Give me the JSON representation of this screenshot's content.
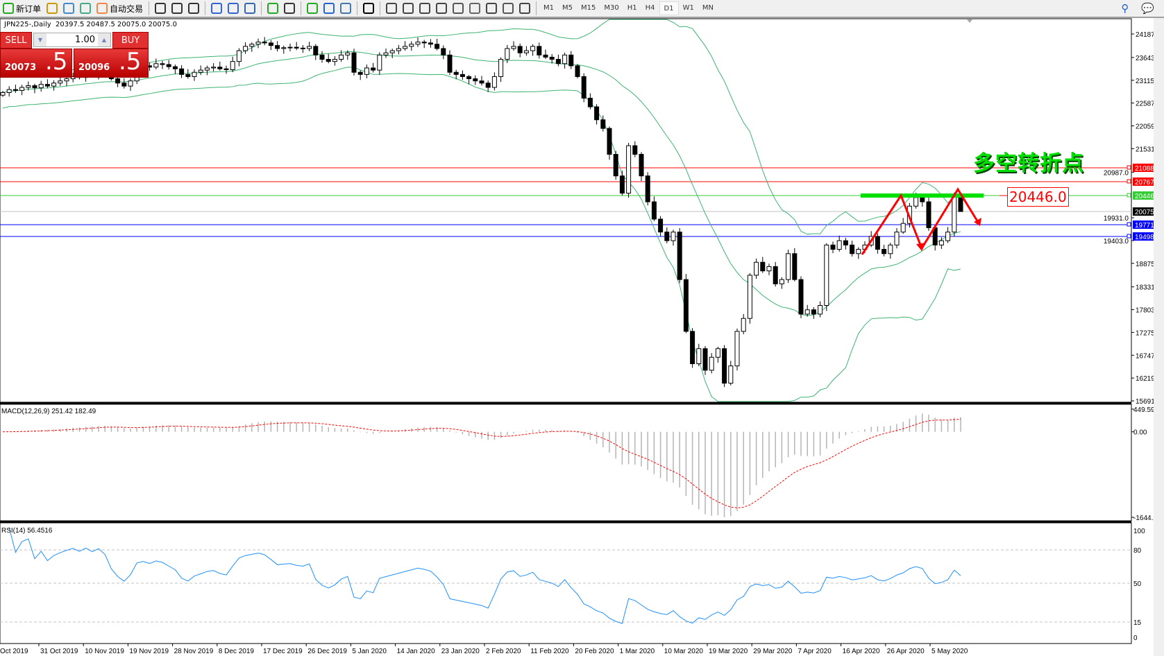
{
  "toolbar": {
    "new_order": "新订单",
    "auto_trading": "自动交易",
    "icons": [
      "new-order-icon",
      "strategy-tester-icon",
      "history-center-icon",
      "signals-icon",
      "auto-trading-icon",
      "bar-chart-icon",
      "candlestick-icon",
      "line-chart-icon",
      "zoom-in-icon",
      "zoom-out-icon",
      "tile-windows-icon",
      "auto-scroll-icon",
      "chart-shift-icon",
      "indicators-icon",
      "periods-icon",
      "templates-icon",
      "cursor-icon",
      "crosshair-icon",
      "vertical-line-icon",
      "horizontal-line-icon",
      "trendline-icon",
      "equidistant-channel-icon",
      "fibonacci-icon",
      "text-icon",
      "text-label-icon",
      "arrows-icon"
    ],
    "timeframes": [
      "M1",
      "M5",
      "M15",
      "M30",
      "H1",
      "H4",
      "D1",
      "W1",
      "MN"
    ],
    "active_timeframe": "D1"
  },
  "chart_header": "JPN225-,Daily  20397.5 20487.5 20075.0 20075.0",
  "trade_panel": {
    "sell": "SELL",
    "buy": "BUY",
    "lots": "1.00",
    "bid_main": "20073",
    "bid_frac": ".5",
    "ask_main": "20096",
    "ask_frac": ".5"
  },
  "annotation": {
    "text": "多空转折点",
    "level_label": "20446.0"
  },
  "colors": {
    "up_down_candle": "#000000",
    "bands": "#3cb371",
    "resist": "#ff0000",
    "pivot": "#00e000",
    "support": "#0000ff",
    "macd_signal": "#ff0000",
    "rsi": "#1e90ff"
  },
  "price_axis": [
    "24187.0",
    "23643.0",
    "23115.0",
    "22587.0",
    "22059.0",
    "21531.0",
    "20987.0",
    "19931.0",
    "19403.0",
    "18875.0",
    "18331.0",
    "17803.0",
    "17275.0",
    "16747.0",
    "16219.0",
    "15691.0"
  ],
  "hlines": [
    {
      "price": 21088.5,
      "label": "21088.5",
      "color": "#ff0000"
    },
    {
      "price": 20767.2,
      "label": "20767.2",
      "color": "#ff0000"
    },
    {
      "price": 20446.0,
      "label": "20446.0",
      "color": "#33cc33"
    },
    {
      "price": 20075.0,
      "label": "20075.0",
      "color": "#000000"
    },
    {
      "price": 19771.3,
      "label": "19771.3",
      "color": "#0000ff"
    },
    {
      "price": 19498.2,
      "label": "19498.2",
      "color": "#0000ff"
    }
  ],
  "macd": {
    "label": "MACD(12,26,9) 251.42 182.49",
    "axis": [
      "449.59",
      "0.00",
      "-1644.35"
    ]
  },
  "rsi": {
    "label": "RSI(14) 56.4516",
    "axis": [
      "100",
      "80",
      "50",
      "15",
      "0"
    ]
  },
  "dates": [
    "Oct 2019",
    "31 Oct 2019",
    "10 Nov 2019",
    "19 Nov 2019",
    "28 Nov 2019",
    "8 Dec 2019",
    "17 Dec 2019",
    "26 Dec 2019",
    "5 Jan 2020",
    "14 Jan 2020",
    "23 Jan 2020",
    "2 Feb 2020",
    "11 Feb 2020",
    "20 Feb 2020",
    "1 Mar 2020",
    "10 Mar 2020",
    "19 Mar 2020",
    "29 Mar 2020",
    "7 Apr 2020",
    "16 Apr 2020",
    "26 Apr 2020",
    "5 May 2020"
  ],
  "chart_data": {
    "type": "candlestick",
    "symbol": "JPN225-",
    "timeframe": "Daily",
    "last": {
      "open": 20397.5,
      "high": 20487.5,
      "low": 20075.0,
      "close": 20075.0
    },
    "closes": [
      22830,
      22900,
      22880,
      22950,
      22990,
      22940,
      23020,
      22980,
      23050,
      23100,
      23150,
      23200,
      23180,
      23280,
      23250,
      23350,
      23300,
      23150,
      23050,
      22980,
      23100,
      23400,
      23450,
      23420,
      23500,
      23480,
      23430,
      23380,
      23250,
      23200,
      23300,
      23350,
      23400,
      23420,
      23380,
      23360,
      23550,
      23800,
      23900,
      23950,
      24000,
      23980,
      23920,
      23850,
      23870,
      23880,
      23860,
      23850,
      23900,
      23700,
      23600,
      23550,
      23600,
      23700,
      23750,
      23300,
      23250,
      23400,
      23350,
      23700,
      23750,
      23800,
      23850,
      23900,
      23950,
      24000,
      23980,
      23950,
      23850,
      23700,
      23300,
      23250,
      23200,
      23150,
      23100,
      23050,
      22950,
      23200,
      23600,
      23850,
      23900,
      23750,
      23800,
      23900,
      23700,
      23650,
      23600,
      23500,
      23700,
      23450,
      23200,
      22700,
      22500,
      22200,
      22000,
      21400,
      20900,
      20500,
      21600,
      21400,
      20900,
      20300,
      19900,
      19600,
      19400,
      19600,
      18500,
      17300,
      16550,
      16900,
      16400,
      16700,
      16900,
      16100,
      16500,
      17300,
      17600,
      18600,
      18900,
      18700,
      18800,
      18400,
      18500,
      19100,
      18500,
      17700,
      17800,
      17700,
      17900,
      19300,
      19200,
      19400,
      19300,
      19100,
      19200,
      19300,
      19500,
      19200,
      19100,
      19300,
      19600,
      19800,
      20200,
      20400,
      20300,
      19700,
      19300,
      19400,
      19600,
      20450,
      20075
    ],
    "price_range": [
      15691,
      24187
    ],
    "indicators": [
      "Bollinger Bands",
      "MACD(12,26,9)",
      "RSI(14)"
    ]
  }
}
